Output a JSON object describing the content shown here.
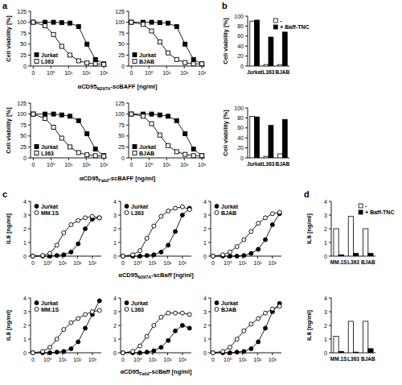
{
  "panel_letters": [
    "a",
    "b",
    "c",
    "d"
  ],
  "row_labels": [
    {
      "parts": [
        "αCD95",
        "N297A",
        "-scBAFF [ng/ml]"
      ]
    },
    {
      "parts": [
        "αCD95",
        "Fab2",
        "-scBAFF [ng/ml]"
      ]
    },
    {
      "parts": [
        "αCD95",
        "N297A",
        "-scBaff [ng/ml]"
      ]
    },
    {
      "parts": [
        "αCD95",
        "Fab2",
        "-scBaff [ng/ml]"
      ]
    }
  ],
  "chart_data": [
    {
      "type": "line",
      "ylabel": "Cell viability [%]",
      "x": [
        0.1,
        0.46,
        1.4,
        4.1,
        12,
        37,
        111,
        333,
        1000
      ],
      "xlim": [
        0.07,
        1500
      ],
      "xticks": [
        {
          "value": 0.1,
          "label": "0"
        },
        {
          "value": 1,
          "label": "10⁰"
        },
        {
          "value": 10,
          "label": "10¹"
        },
        {
          "value": 100,
          "label": "10²"
        },
        {
          "value": 1000,
          "label": "10³"
        }
      ],
      "ylim": [
        0,
        125
      ],
      "yticks": [
        0,
        25,
        50,
        75,
        100,
        125
      ],
      "log": "x",
      "grid": false,
      "legend": "lower-left",
      "series": [
        {
          "name": "Jurkat",
          "color": "#000000",
          "marker": "square",
          "line_style": "solid",
          "values": [
            100,
            100,
            100,
            99,
            98,
            90,
            50,
            15,
            5
          ]
        },
        {
          "name": "L363",
          "color": "#000000",
          "marker": "open-square",
          "line_style": "solid",
          "values": [
            100,
            92,
            72,
            45,
            25,
            12,
            7,
            5,
            4
          ]
        }
      ]
    },
    {
      "type": "line",
      "x": [
        0.1,
        0.46,
        1.4,
        4.1,
        12,
        37,
        111,
        333,
        1000
      ],
      "xlim": [
        0.07,
        1500
      ],
      "xticks": [
        {
          "value": 0.1,
          "label": "0"
        },
        {
          "value": 1,
          "label": "10⁰"
        },
        {
          "value": 10,
          "label": "10¹"
        },
        {
          "value": 100,
          "label": "10²"
        },
        {
          "value": 1000,
          "label": "10³"
        }
      ],
      "ylim": [
        0,
        125
      ],
      "yticks": [
        0,
        25,
        50,
        75,
        100,
        125
      ],
      "log": "x",
      "grid": false,
      "legend": "lower-left",
      "series": [
        {
          "name": "Jurkat",
          "color": "#000000",
          "marker": "square",
          "line_style": "solid",
          "values": [
            100,
            100,
            100,
            99,
            98,
            90,
            50,
            15,
            5
          ]
        },
        {
          "name": "BJAB",
          "color": "#000000",
          "marker": "open-square",
          "line_style": "solid",
          "values": [
            100,
            95,
            80,
            55,
            30,
            15,
            8,
            5,
            5
          ]
        }
      ]
    },
    {
      "type": "line",
      "ylabel": "Cell viability [%]",
      "x": [
        0.1,
        0.46,
        1.4,
        4.1,
        12,
        37,
        111,
        333,
        1000
      ],
      "xlim": [
        0.07,
        1500
      ],
      "xticks": [
        {
          "value": 0.1,
          "label": "0"
        },
        {
          "value": 1,
          "label": "10⁰"
        },
        {
          "value": 10,
          "label": "10¹"
        },
        {
          "value": 100,
          "label": "10²"
        },
        {
          "value": 1000,
          "label": "10³"
        }
      ],
      "ylim": [
        0,
        125
      ],
      "yticks": [
        0,
        25,
        50,
        75,
        100,
        125
      ],
      "log": "x",
      "grid": false,
      "legend": "lower-left",
      "series": [
        {
          "name": "Jurkat",
          "color": "#000000",
          "marker": "square",
          "line_style": "solid",
          "values": [
            100,
            100,
            100,
            98,
            95,
            85,
            55,
            20,
            5
          ]
        },
        {
          "name": "L363",
          "color": "#000000",
          "marker": "open-square",
          "line_style": "solid",
          "values": [
            100,
            90,
            70,
            45,
            25,
            12,
            7,
            5,
            4
          ]
        }
      ]
    },
    {
      "type": "line",
      "x": [
        0.1,
        0.46,
        1.4,
        4.1,
        12,
        37,
        111,
        333,
        1000
      ],
      "xlim": [
        0.07,
        1500
      ],
      "xticks": [
        {
          "value": 0.1,
          "label": "0"
        },
        {
          "value": 1,
          "label": "10⁰"
        },
        {
          "value": 10,
          "label": "10¹"
        },
        {
          "value": 100,
          "label": "10²"
        },
        {
          "value": 1000,
          "label": "10³"
        }
      ],
      "ylim": [
        0,
        125
      ],
      "yticks": [
        0,
        25,
        50,
        75,
        100,
        125
      ],
      "log": "x",
      "grid": false,
      "legend": "lower-left",
      "series": [
        {
          "name": "Jurkat",
          "color": "#000000",
          "marker": "square",
          "line_style": "solid",
          "values": [
            100,
            100,
            100,
            98,
            95,
            85,
            55,
            20,
            5
          ]
        },
        {
          "name": "BJAB",
          "color": "#000000",
          "marker": "open-square",
          "line_style": "solid",
          "values": [
            100,
            95,
            78,
            52,
            28,
            14,
            8,
            5,
            5
          ]
        }
      ]
    },
    {
      "type": "bar",
      "ylabel": "Cell viability [%]",
      "categories": [
        "Jurkat",
        "L363",
        "BJAB"
      ],
      "ylim": [
        0,
        100
      ],
      "yticks": [
        0,
        20,
        40,
        60,
        80,
        100
      ],
      "grid": false,
      "legend": "upper-right",
      "series": [
        {
          "name": "-",
          "color": "#ffffff",
          "values": [
            90,
            3,
            3
          ]
        },
        {
          "name": "+ Baff-TNC",
          "color": "#000000",
          "values": [
            92,
            58,
            68
          ]
        }
      ]
    },
    {
      "type": "bar",
      "ylabel": "Cell viability [%]",
      "categories": [
        "Jurkat",
        "L363",
        "BJAB"
      ],
      "ylim": [
        0,
        100
      ],
      "yticks": [
        0,
        20,
        40,
        60,
        80,
        100
      ],
      "grid": false,
      "legend": "none",
      "series": [
        {
          "name": "-",
          "color": "#ffffff",
          "values": [
            83,
            3,
            8
          ]
        },
        {
          "name": "+ Baff-TNC",
          "color": "#000000",
          "values": [
            82,
            65,
            77
          ]
        }
      ]
    },
    {
      "type": "line",
      "ylabel": "IL8 [ng/ml]",
      "x": [
        0.1,
        0.46,
        1.4,
        4.1,
        12,
        37,
        111,
        333,
        1000,
        3000
      ],
      "xlim": [
        0.07,
        4000
      ],
      "xticks": [
        {
          "value": 0.1,
          "label": "0"
        },
        {
          "value": 1,
          "label": "10⁰"
        },
        {
          "value": 10,
          "label": "10¹"
        },
        {
          "value": 100,
          "label": "10²"
        },
        {
          "value": 1000,
          "label": "10³"
        }
      ],
      "ylim": [
        0,
        4
      ],
      "yticks": [
        0,
        1,
        2,
        3,
        4
      ],
      "log": "x",
      "grid": false,
      "legend": "upper-left",
      "series": [
        {
          "name": "Jurkat",
          "color": "#000000",
          "marker": "circle",
          "line_style": "solid",
          "values": [
            0,
            0,
            0,
            0.05,
            0.1,
            0.3,
            0.9,
            2.0,
            2.7,
            2.8
          ]
        },
        {
          "name": "MM.1S",
          "color": "#000000",
          "marker": "open-circle",
          "line_style": "solid",
          "values": [
            0,
            0.05,
            0.2,
            0.8,
            1.7,
            2.3,
            2.6,
            2.8,
            2.9,
            2.8
          ]
        }
      ]
    },
    {
      "type": "line",
      "x": [
        0.1,
        0.46,
        1.4,
        4.1,
        12,
        37,
        111,
        333,
        1000,
        3000
      ],
      "xlim": [
        0.07,
        4000
      ],
      "xticks": [
        {
          "value": 0.1,
          "label": "0"
        },
        {
          "value": 1,
          "label": "10⁰"
        },
        {
          "value": 10,
          "label": "10¹"
        },
        {
          "value": 100,
          "label": "10²"
        },
        {
          "value": 1000,
          "label": "10³"
        }
      ],
      "ylim": [
        0,
        4
      ],
      "yticks": [
        0,
        1,
        2,
        3,
        4
      ],
      "log": "x",
      "grid": false,
      "legend": "upper-left",
      "series": [
        {
          "name": "Jurkat",
          "color": "#000000",
          "marker": "circle",
          "line_style": "solid",
          "values": [
            0,
            0,
            0,
            0.05,
            0.1,
            0.3,
            0.8,
            1.8,
            3.0,
            3.5
          ]
        },
        {
          "name": "L363",
          "color": "#000000",
          "marker": "open-circle",
          "line_style": "solid",
          "values": [
            0,
            0.1,
            0.4,
            1.3,
            2.2,
            2.9,
            3.3,
            3.5,
            3.6,
            3.4
          ]
        }
      ]
    },
    {
      "type": "line",
      "x": [
        0.1,
        0.46,
        1.4,
        4.1,
        12,
        37,
        111,
        333,
        1000,
        3000
      ],
      "xlim": [
        0.07,
        4000
      ],
      "xticks": [
        {
          "value": 0.1,
          "label": "0"
        },
        {
          "value": 1,
          "label": "10⁰"
        },
        {
          "value": 10,
          "label": "10¹"
        },
        {
          "value": 100,
          "label": "10²"
        },
        {
          "value": 1000,
          "label": "10³"
        }
      ],
      "ylim": [
        0,
        4
      ],
      "yticks": [
        0,
        1,
        2,
        3,
        4
      ],
      "log": "x",
      "grid": false,
      "legend": "upper-left",
      "series": [
        {
          "name": "Jurkat",
          "color": "#000000",
          "marker": "circle",
          "line_style": "solid",
          "values": [
            0,
            0,
            0,
            0,
            0.05,
            0.2,
            0.5,
            1.2,
            2.3,
            3.1
          ]
        },
        {
          "name": "BJAB",
          "color": "#000000",
          "marker": "open-circle",
          "line_style": "solid",
          "values": [
            0,
            0.1,
            0.3,
            0.7,
            1.2,
            1.8,
            2.4,
            2.8,
            3.1,
            3.2
          ]
        }
      ]
    },
    {
      "type": "line",
      "ylabel": "IL8 [ng/ml]",
      "x": [
        0.1,
        0.46,
        1.4,
        4.1,
        12,
        37,
        111,
        333,
        1000,
        3000
      ],
      "xlim": [
        0.07,
        4000
      ],
      "xticks": [
        {
          "value": 0.1,
          "label": "0"
        },
        {
          "value": 1,
          "label": "10⁰"
        },
        {
          "value": 10,
          "label": "10¹"
        },
        {
          "value": 100,
          "label": "10²"
        },
        {
          "value": 1000,
          "label": "10³"
        }
      ],
      "ylim": [
        0,
        4
      ],
      "yticks": [
        0,
        1,
        2,
        3,
        4
      ],
      "log": "x",
      "grid": false,
      "legend": "upper-left",
      "series": [
        {
          "name": "Jurkat",
          "color": "#000000",
          "marker": "circle",
          "line_style": "solid",
          "values": [
            0,
            0,
            0,
            0.05,
            0.1,
            0.3,
            0.8,
            1.8,
            2.8,
            3.8
          ]
        },
        {
          "name": "MM.1S",
          "color": "#000000",
          "marker": "open-circle",
          "line_style": "solid",
          "values": [
            0,
            0.1,
            0.4,
            1.0,
            1.7,
            2.2,
            2.5,
            2.8,
            3.0,
            3.1
          ]
        }
      ]
    },
    {
      "type": "line",
      "x": [
        0.1,
        0.46,
        1.4,
        4.1,
        12,
        37,
        111,
        333,
        1000,
        3000
      ],
      "xlim": [
        0.07,
        4000
      ],
      "xticks": [
        {
          "value": 0.1,
          "label": "0"
        },
        {
          "value": 1,
          "label": "10⁰"
        },
        {
          "value": 10,
          "label": "10¹"
        },
        {
          "value": 100,
          "label": "10²"
        },
        {
          "value": 1000,
          "label": "10³"
        }
      ],
      "ylim": [
        0,
        4
      ],
      "yticks": [
        0,
        1,
        2,
        3,
        4
      ],
      "log": "x",
      "grid": false,
      "legend": "upper-left",
      "series": [
        {
          "name": "Jurkat",
          "color": "#000000",
          "marker": "circle",
          "line_style": "solid",
          "values": [
            0,
            0,
            0,
            0.05,
            0.15,
            0.4,
            0.9,
            1.6,
            2.0,
            1.8
          ]
        },
        {
          "name": "L363",
          "color": "#000000",
          "marker": "open-circle",
          "line_style": "solid",
          "values": [
            0,
            0.1,
            0.5,
            1.2,
            2.0,
            2.6,
            2.9,
            2.9,
            2.9,
            2.8
          ]
        }
      ]
    },
    {
      "type": "line",
      "x": [
        0.1,
        0.46,
        1.4,
        4.1,
        12,
        37,
        111,
        333,
        1000,
        3000
      ],
      "xlim": [
        0.07,
        4000
      ],
      "xticks": [
        {
          "value": 0.1,
          "label": "0"
        },
        {
          "value": 1,
          "label": "10⁰"
        },
        {
          "value": 10,
          "label": "10¹"
        },
        {
          "value": 100,
          "label": "10²"
        },
        {
          "value": 1000,
          "label": "10³"
        }
      ],
      "ylim": [
        0,
        4
      ],
      "yticks": [
        0,
        1,
        2,
        3,
        4
      ],
      "log": "x",
      "grid": false,
      "legend": "upper-left",
      "series": [
        {
          "name": "Jurkat",
          "color": "#000000",
          "marker": "circle",
          "line_style": "solid",
          "values": [
            0,
            0,
            0,
            0.05,
            0.1,
            0.3,
            0.8,
            1.8,
            3.0,
            3.6
          ]
        },
        {
          "name": "BJAB",
          "color": "#000000",
          "marker": "open-circle",
          "line_style": "solid",
          "values": [
            0,
            0.1,
            0.4,
            1.0,
            1.6,
            2.1,
            2.5,
            2.9,
            3.2,
            3.4
          ]
        }
      ]
    },
    {
      "type": "bar",
      "ylabel": "IL8 [ng/ml]",
      "categories": [
        "MM.1S",
        "L363",
        "BJAB"
      ],
      "ylim": [
        0,
        4
      ],
      "yticks": [
        0,
        1,
        2,
        3,
        4
      ],
      "grid": false,
      "legend": "upper-right",
      "series": [
        {
          "name": "-",
          "color": "#ffffff",
          "values": [
            2.0,
            2.9,
            2.0
          ]
        },
        {
          "name": "+ Baff-TNC",
          "color": "#000000",
          "values": [
            0.1,
            0.2,
            0.2
          ]
        }
      ]
    },
    {
      "type": "bar",
      "ylabel": "IL8 [ng/ml]",
      "categories": [
        "MM.1S",
        "L363",
        "BJAB"
      ],
      "ylim": [
        0,
        4
      ],
      "yticks": [
        0,
        1,
        2,
        3,
        4
      ],
      "grid": false,
      "legend": "none",
      "series": [
        {
          "name": "-",
          "color": "#ffffff",
          "values": [
            1.2,
            2.3,
            2.3
          ]
        },
        {
          "name": "+ Baff-TNC",
          "color": "#000000",
          "values": [
            0.1,
            0.05,
            0.3
          ]
        }
      ]
    }
  ]
}
